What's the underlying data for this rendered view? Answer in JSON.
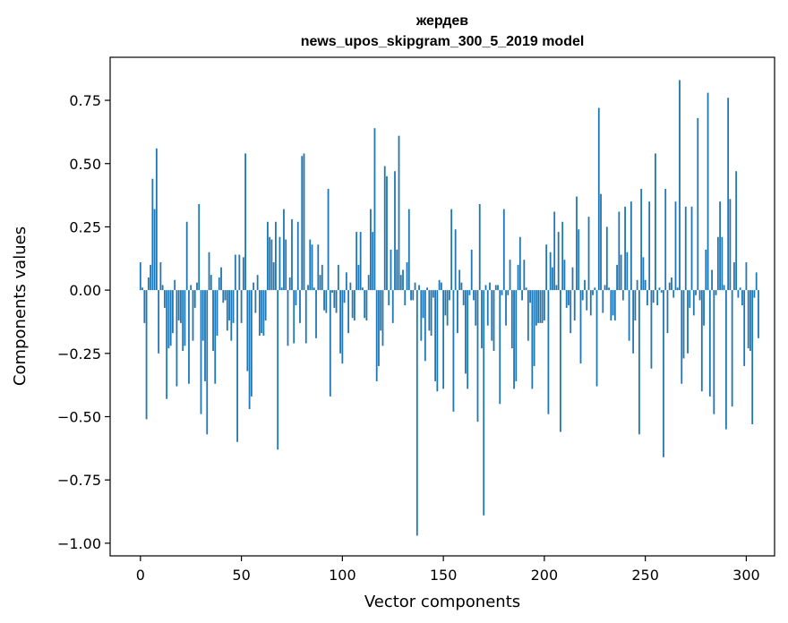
{
  "chart_data": {
    "type": "bar",
    "title": "жердев",
    "subtitle": "news_upos_skipgram_300_5_2019 model",
    "xlabel": "Vector components",
    "ylabel": "Components values",
    "xlim": [
      -15,
      314
    ],
    "ylim": [
      -1.05,
      0.92
    ],
    "xticks": [
      0,
      50,
      100,
      150,
      200,
      250,
      300
    ],
    "xtick_labels": [
      "0",
      "50",
      "100",
      "150",
      "200",
      "250",
      "300"
    ],
    "yticks": [
      0.75,
      0.5,
      0.25,
      0.0,
      -0.25,
      -0.5,
      -0.75,
      -1.0
    ],
    "ytick_labels": [
      "0.75",
      "0.50",
      "0.25",
      "0.00",
      "−0.25",
      "−0.50",
      "−0.75",
      "−1.00"
    ],
    "bar_color": "#1f77b4",
    "grid": false,
    "values": [
      0.11,
      0.01,
      -0.13,
      -0.51,
      0.05,
      0.1,
      0.44,
      0.32,
      0.56,
      -0.25,
      0.11,
      0.02,
      -0.07,
      -0.43,
      -0.23,
      -0.22,
      -0.17,
      0.04,
      -0.38,
      -0.12,
      -0.13,
      -0.24,
      -0.22,
      0.27,
      -0.37,
      0.02,
      -0.2,
      -0.07,
      0.03,
      0.34,
      -0.49,
      -0.2,
      -0.36,
      -0.57,
      0.15,
      0.06,
      -0.24,
      -0.37,
      -0.18,
      0.05,
      0.09,
      -0.05,
      -0.04,
      -0.16,
      -0.12,
      -0.2,
      -0.13,
      0.14,
      -0.6,
      0.14,
      -0.13,
      0.13,
      0.54,
      -0.32,
      -0.47,
      -0.42,
      0.03,
      -0.09,
      0.06,
      -0.18,
      -0.17,
      -0.18,
      -0.12,
      0.27,
      0.21,
      0.2,
      0.11,
      0.27,
      -0.63,
      0.21,
      0.01,
      0.32,
      0.2,
      -0.22,
      0.05,
      0.28,
      -0.21,
      -0.06,
      0.27,
      -0.13,
      0.53,
      0.54,
      -0.21,
      0.02,
      0.2,
      0.18,
      0.01,
      -0.19,
      0.18,
      0.06,
      0.1,
      -0.08,
      -0.09,
      0.4,
      -0.42,
      -0.01,
      -0.07,
      -0.09,
      0.1,
      -0.25,
      -0.29,
      -0.05,
      0.07,
      -0.17,
      0.03,
      -0.11,
      -0.12,
      0.23,
      0.1,
      0.23,
      0.01,
      -0.11,
      -0.12,
      0.06,
      0.32,
      0.23,
      0.64,
      -0.36,
      -0.3,
      -0.16,
      -0.22,
      0.49,
      0.45,
      -0.06,
      0.16,
      -0.13,
      0.47,
      0.16,
      0.61,
      0.06,
      0.08,
      -0.06,
      0.11,
      0.32,
      -0.04,
      -0.04,
      0.03,
      -0.97,
      0.02,
      -0.2,
      -0.11,
      -0.28,
      0.01,
      -0.16,
      -0.18,
      -0.03,
      -0.36,
      -0.4,
      0.04,
      0.03,
      -0.39,
      -0.1,
      -0.14,
      -0.04,
      0.32,
      -0.48,
      0.24,
      -0.17,
      0.08,
      0.03,
      -0.06,
      -0.33,
      -0.39,
      -0.02,
      0.16,
      -0.04,
      -0.14,
      -0.52,
      0.34,
      -0.23,
      -0.89,
      0.02,
      -0.14,
      0.03,
      -0.2,
      -0.24,
      0.02,
      0.02,
      -0.45,
      -0.02,
      0.32,
      -0.14,
      -0.02,
      0.12,
      -0.23,
      -0.39,
      -0.36,
      0.1,
      0.21,
      -0.04,
      0.12,
      0.01,
      -0.2,
      -0.05,
      -0.39,
      -0.3,
      -0.14,
      -0.13,
      -0.13,
      -0.13,
      -0.12,
      0.18,
      -0.49,
      0.15,
      0.09,
      0.31,
      0.02,
      0.23,
      -0.56,
      0.27,
      0.12,
      -0.07,
      -0.06,
      -0.17,
      0.09,
      -0.12,
      0.37,
      0.24,
      -0.29,
      -0.04,
      0.04,
      -0.08,
      0.29,
      -0.1,
      -0.02,
      0.01,
      -0.38,
      0.72,
      0.38,
      -0.09,
      0.02,
      0.25,
      0.01,
      -0.12,
      -0.1,
      -0.12,
      0.1,
      0.31,
      0.14,
      -0.04,
      0.33,
      0.15,
      -0.2,
      0.35,
      -0.25,
      -0.12,
      0.04,
      -0.57,
      0.4,
      0.13,
      0.04,
      -0.06,
      0.35,
      -0.31,
      -0.05,
      0.54,
      -0.06,
      0.01,
      -0.01,
      -0.66,
      0.4,
      -0.17,
      0.03,
      0.05,
      -0.03,
      0.35,
      0.01,
      0.83,
      -0.37,
      -0.27,
      0.33,
      -0.25,
      -0.07,
      0.33,
      -0.1,
      -0.02,
      0.68,
      -0.04,
      -0.4,
      -0.14,
      0.16,
      0.78,
      -0.42,
      0.08,
      -0.49,
      -0.02,
      0.21,
      0.35,
      0.21,
      0.02,
      -0.55,
      0.76,
      0.36,
      -0.46,
      0.11,
      0.47,
      -0.03,
      0.01,
      -0.06,
      -0.3,
      0.11,
      -0.23,
      -0.24,
      -0.53,
      -0.03,
      0.07,
      -0.19
    ]
  }
}
